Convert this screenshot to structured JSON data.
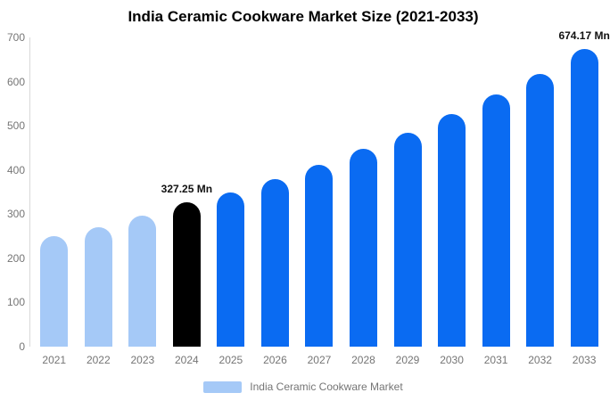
{
  "title": "India Ceramic Cookware Market Size (2021-2033)",
  "legend": {
    "label": "India Ceramic Cookware Market",
    "swatch_color": "#a5c9f7"
  },
  "colors": {
    "past": "#a5c9f7",
    "highlight": "#000000",
    "forecast": "#0a6bf2",
    "axis_line": "#d9d9d9",
    "tick_text": "#757575",
    "value_label_text": "#111111"
  },
  "chart_data": {
    "type": "bar",
    "title": "India Ceramic Cookware Market Size (2021-2033)",
    "unit": "Mn",
    "categories": [
      "2021",
      "2022",
      "2023",
      "2024",
      "2025",
      "2026",
      "2027",
      "2028",
      "2029",
      "2030",
      "2031",
      "2032",
      "2033"
    ],
    "values": [
      250,
      271,
      296,
      327.25,
      349,
      379,
      412,
      447,
      485,
      527,
      570,
      617,
      674.17
    ],
    "point_color_roles": [
      "past",
      "past",
      "past",
      "highlight",
      "forecast",
      "forecast",
      "forecast",
      "forecast",
      "forecast",
      "forecast",
      "forecast",
      "forecast",
      "forecast"
    ],
    "data_labels": [
      {
        "category": "2024",
        "text": "327.25 Mn"
      },
      {
        "category": "2033",
        "text": "674.17 Mn"
      }
    ],
    "y_ticks": [
      0,
      100,
      200,
      300,
      400,
      500,
      600,
      700
    ],
    "ylim": [
      0,
      700
    ],
    "grid": false,
    "legend_position": "bottom",
    "legend_entries": [
      "India Ceramic Cookware Market"
    ]
  }
}
